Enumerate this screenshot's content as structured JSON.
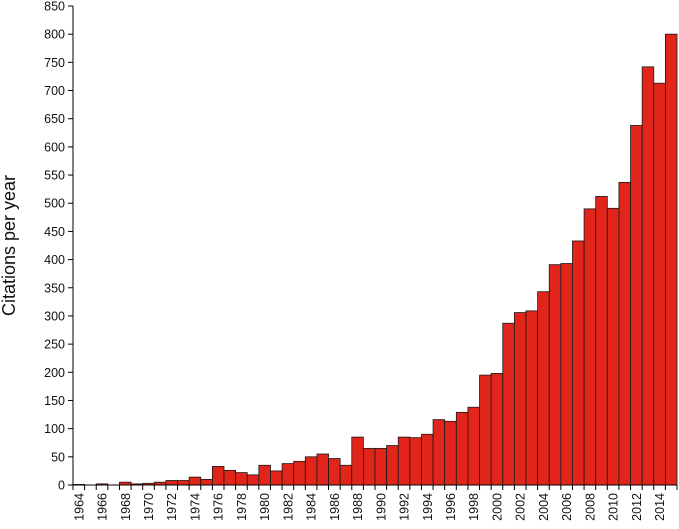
{
  "chart_data": {
    "type": "bar",
    "title": "",
    "xlabel": "",
    "ylabel": "Citations per year",
    "ylim": [
      0,
      850
    ],
    "ytick_step": 50,
    "grid": false,
    "legend": "none",
    "bar_color": "#e1251b",
    "categories": [
      "1964",
      "1965",
      "1966",
      "1967",
      "1968",
      "1969",
      "1970",
      "1971",
      "1972",
      "1973",
      "1974",
      "1975",
      "1976",
      "1977",
      "1978",
      "1979",
      "1980",
      "1981",
      "1982",
      "1983",
      "1984",
      "1985",
      "1986",
      "1987",
      "1988",
      "1989",
      "1990",
      "1991",
      "1992",
      "1993",
      "1994",
      "1995",
      "1996",
      "1997",
      "1998",
      "1999",
      "2000",
      "2001",
      "2002",
      "2003",
      "2004",
      "2005",
      "2006",
      "2007",
      "2008",
      "2009",
      "2010",
      "2011",
      "2012",
      "2013",
      "2014",
      "2015"
    ],
    "x_tick_labels": [
      "1964",
      "1966",
      "1968",
      "1970",
      "1972",
      "1974",
      "1976",
      "1978",
      "1980",
      "1982",
      "1984",
      "1986",
      "1988",
      "1990",
      "1992",
      "1994",
      "1996",
      "1998",
      "2000",
      "2002",
      "2004",
      "2006",
      "2008",
      "2010",
      "2012",
      "2014"
    ],
    "values": [
      1,
      0,
      2,
      0,
      5,
      2,
      3,
      5,
      8,
      8,
      14,
      10,
      33,
      26,
      22,
      18,
      35,
      25,
      38,
      42,
      50,
      55,
      47,
      35,
      85,
      65,
      65,
      70,
      85,
      84,
      90,
      116,
      113,
      129,
      138,
      195,
      198,
      287,
      306,
      309,
      343,
      391,
      393,
      433,
      490,
      512,
      491,
      537,
      638,
      742,
      713,
      800
    ]
  }
}
